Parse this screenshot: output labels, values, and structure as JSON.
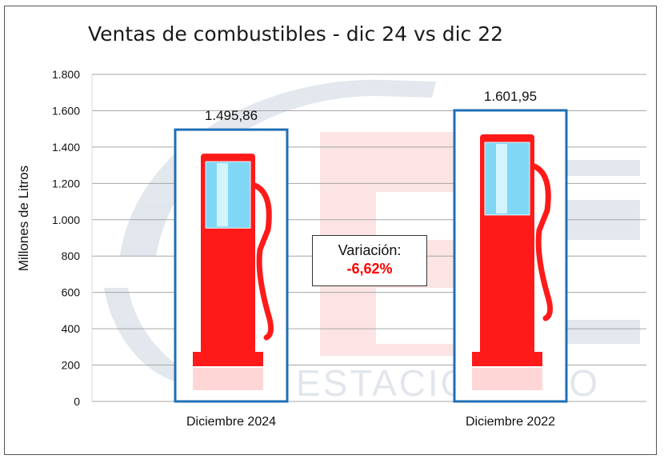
{
  "chart_data": {
    "type": "bar",
    "title": "Ventas de combustibles - dic 24 vs dic 22",
    "ylabel": "Millones de Litros",
    "xlabel": "",
    "categories": [
      "Diciembre 2024",
      "Diciembre 2022"
    ],
    "values": [
      1495.86,
      1601.95
    ],
    "value_labels": [
      "1.495,86",
      "1.601,95"
    ],
    "ylim": [
      0,
      1800
    ],
    "yticks": [
      0,
      200,
      400,
      600,
      800,
      1000,
      1200,
      1400,
      1600,
      1800
    ],
    "ytick_labels": [
      "0",
      "200",
      "400",
      "600",
      "800",
      "1.000",
      "1.200",
      "1.400",
      "1.600",
      "1.800"
    ],
    "grid": true,
    "bar_style": "fuel-pump pictogram",
    "annotation": {
      "label": "Variación:",
      "value": "-6,62%"
    },
    "watermark": "ESTACIÓN PRO",
    "colors": {
      "bar_border": "#1f6fb5",
      "pump": "#ff1a1a",
      "variation": "#ff0000",
      "grid": "#a6a6a6"
    }
  }
}
